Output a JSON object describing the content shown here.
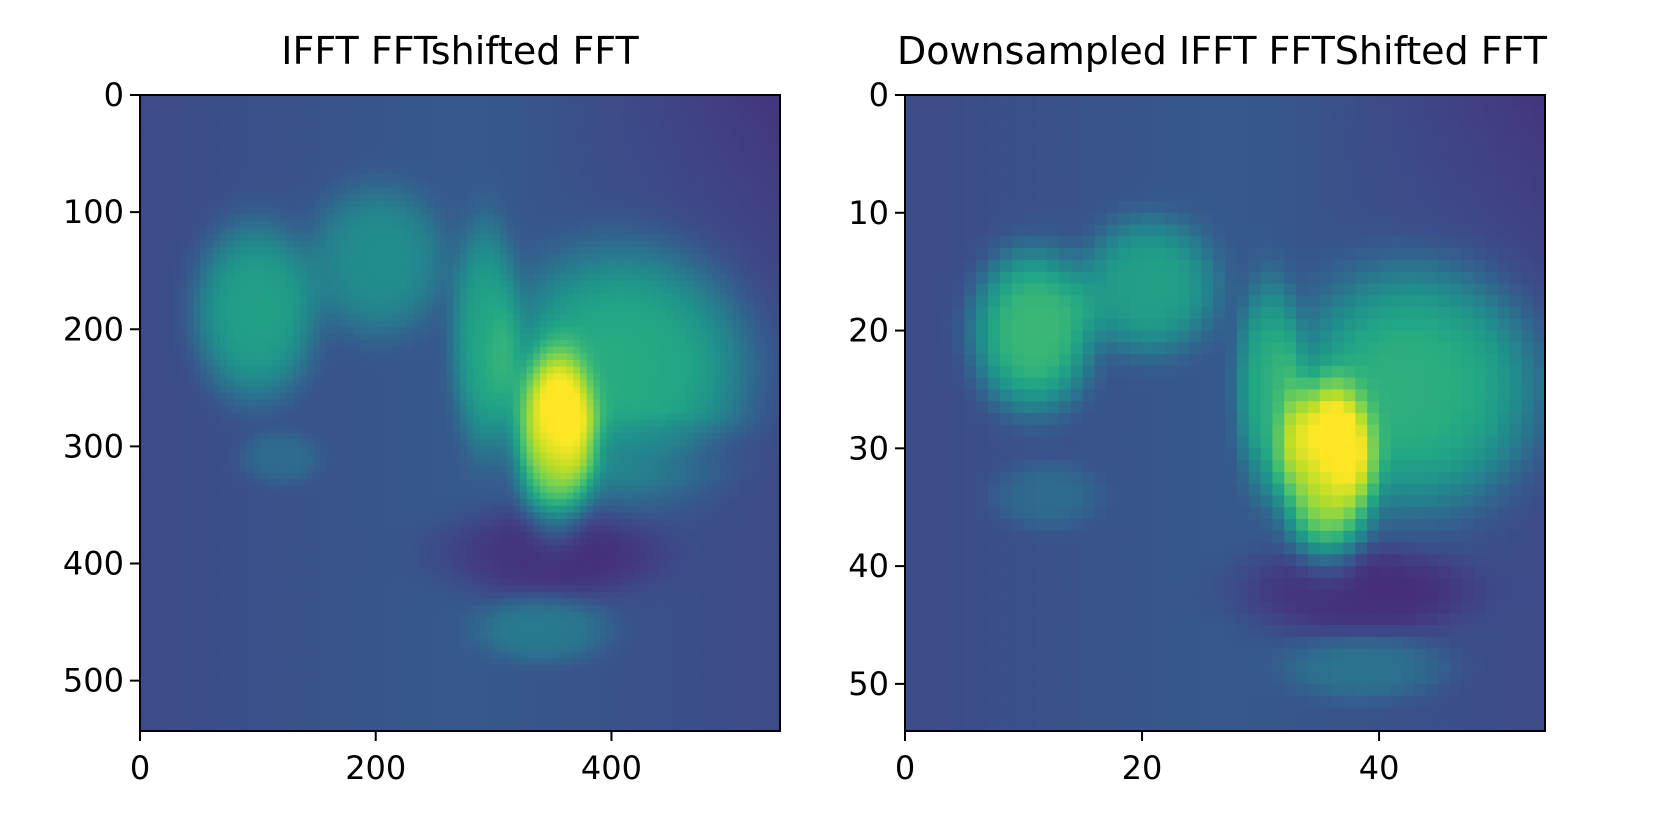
{
  "chart_data": [
    {
      "type": "heatmap",
      "title": "IFFT FFTshifted FFT",
      "colormap": "viridis",
      "colors": {
        "low": "#440154",
        "high": "#fde725"
      },
      "image_size": [
        543,
        543
      ],
      "xlim": [
        0,
        543
      ],
      "ylim": [
        543,
        0
      ],
      "xticks": [
        0,
        200,
        400
      ],
      "yticks": [
        0,
        100,
        200,
        300,
        400,
        500
      ],
      "xtick_labels": [
        "0",
        "200",
        "400"
      ],
      "ytick_labels": [
        "0",
        "100",
        "200",
        "300",
        "400",
        "500"
      ],
      "features": [
        {
          "cx": 0.18,
          "cy": 0.34,
          "rx": 0.09,
          "ry": 0.13,
          "v": 0.32
        },
        {
          "cx": 0.37,
          "cy": 0.26,
          "rx": 0.1,
          "ry": 0.11,
          "v": 0.22
        },
        {
          "cx": 0.54,
          "cy": 0.38,
          "rx": 0.05,
          "ry": 0.17,
          "v": 0.28
        },
        {
          "cx": 0.76,
          "cy": 0.43,
          "rx": 0.18,
          "ry": 0.18,
          "v": 0.36
        },
        {
          "cx": 0.65,
          "cy": 0.54,
          "rx": 0.06,
          "ry": 0.13,
          "v": 0.5
        },
        {
          "cx": 0.64,
          "cy": 0.72,
          "rx": 0.17,
          "ry": 0.07,
          "v": -0.12
        },
        {
          "cx": 0.63,
          "cy": 0.84,
          "rx": 0.1,
          "ry": 0.05,
          "v": 0.14
        },
        {
          "cx": 0.22,
          "cy": 0.57,
          "rx": 0.06,
          "ry": 0.04,
          "v": 0.1
        },
        {
          "cx": 0.82,
          "cy": 0.55,
          "rx": 0.12,
          "ry": 0.04,
          "v": -0.08
        }
      ]
    },
    {
      "type": "heatmap",
      "title": "Downsampled IFFT FFTShifted FFT",
      "colormap": "viridis",
      "colors": {
        "low": "#440154",
        "high": "#fde725"
      },
      "image_size": [
        54,
        54
      ],
      "xlim": [
        0,
        54
      ],
      "ylim": [
        54,
        0
      ],
      "xticks": [
        0,
        20,
        40
      ],
      "yticks": [
        0,
        10,
        20,
        30,
        40,
        50
      ],
      "xtick_labels": [
        "0",
        "20",
        "40"
      ],
      "ytick_labels": [
        "0",
        "10",
        "20",
        "30",
        "40",
        "50"
      ],
      "features": [
        {
          "cx": 0.2,
          "cy": 0.37,
          "rx": 0.09,
          "ry": 0.12,
          "v": 0.42
        },
        {
          "cx": 0.38,
          "cy": 0.3,
          "rx": 0.1,
          "ry": 0.1,
          "v": 0.3
        },
        {
          "cx": 0.57,
          "cy": 0.46,
          "rx": 0.05,
          "ry": 0.16,
          "v": 0.32
        },
        {
          "cx": 0.8,
          "cy": 0.46,
          "rx": 0.18,
          "ry": 0.18,
          "v": 0.38
        },
        {
          "cx": 0.66,
          "cy": 0.59,
          "rx": 0.07,
          "ry": 0.13,
          "v": 0.58
        },
        {
          "cx": 0.7,
          "cy": 0.78,
          "rx": 0.18,
          "ry": 0.07,
          "v": -0.12
        },
        {
          "cx": 0.72,
          "cy": 0.9,
          "rx": 0.12,
          "ry": 0.05,
          "v": 0.12
        },
        {
          "cx": 0.22,
          "cy": 0.63,
          "rx": 0.08,
          "ry": 0.05,
          "v": 0.1
        }
      ]
    }
  ]
}
